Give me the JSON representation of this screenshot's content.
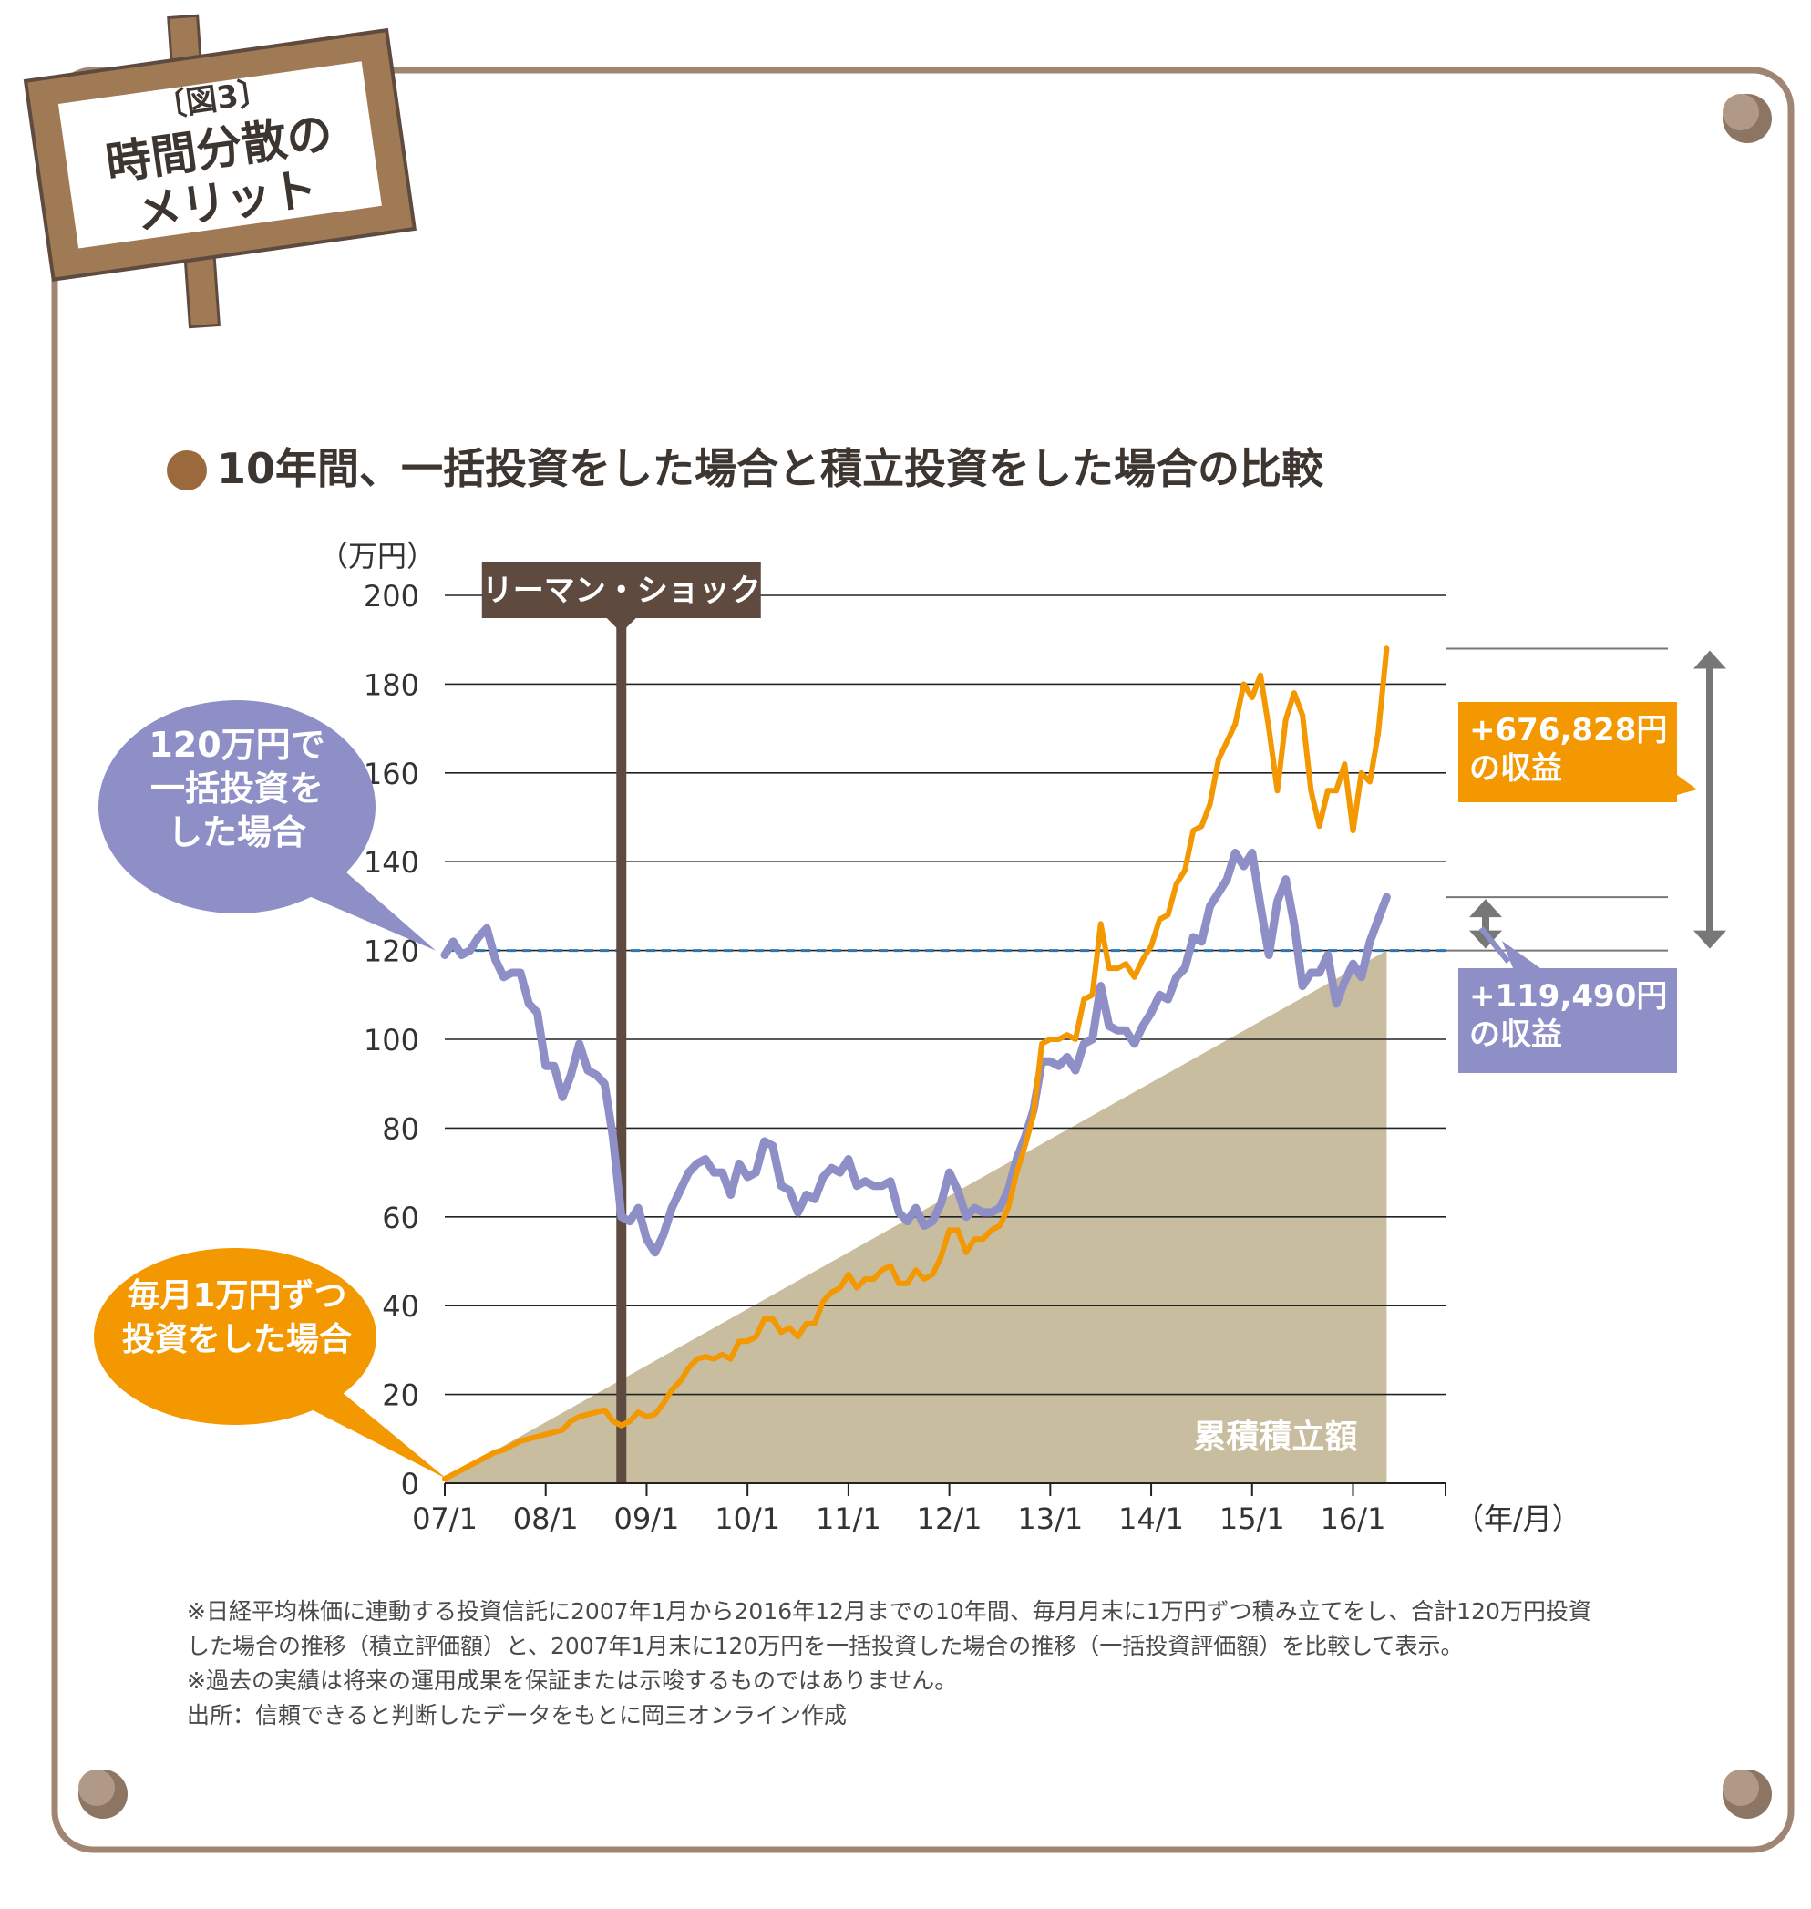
{
  "header": {
    "figure_tag": "〔図3〕",
    "title_line1": "時間分散の",
    "title_line2": "メリット",
    "chart_heading": "10年間、一括投資をした場合と積立投資をした場合の比較"
  },
  "chart_data": {
    "type": "line",
    "title": "",
    "y_unit_label": "（万円）",
    "x_unit_label": "（年/月）",
    "ylim": [
      0,
      200
    ],
    "y_ticks": [
      0,
      20,
      40,
      60,
      80,
      100,
      120,
      140,
      160,
      180,
      200
    ],
    "x_tick_labels": [
      "07/1",
      "08/1",
      "09/1",
      "10/1",
      "11/1",
      "12/1",
      "13/1",
      "14/1",
      "15/1",
      "16/1"
    ],
    "x_tick_months": [
      0,
      12,
      24,
      36,
      48,
      60,
      72,
      84,
      96,
      108
    ],
    "x_range_months": [
      0,
      119
    ],
    "grid": "horizontal",
    "reference_line": {
      "value": 120,
      "style": "dashed",
      "color": "#2e75b6"
    },
    "event": {
      "label": "リーマン・ショック",
      "month": 21
    },
    "series": [
      {
        "name": "120万円で一括投資をした場合",
        "color": "#8e8fc7",
        "points": [
          [
            0,
            119
          ],
          [
            1,
            122
          ],
          [
            2,
            119
          ],
          [
            3,
            120
          ],
          [
            4,
            123
          ],
          [
            5,
            125
          ],
          [
            6,
            118
          ],
          [
            7,
            114
          ],
          [
            8,
            115
          ],
          [
            9,
            115
          ],
          [
            10,
            108
          ],
          [
            11,
            106
          ],
          [
            12,
            94
          ],
          [
            13,
            94
          ],
          [
            14,
            87
          ],
          [
            15,
            92
          ],
          [
            16,
            99
          ],
          [
            17,
            93
          ],
          [
            18,
            92
          ],
          [
            19,
            90
          ],
          [
            20,
            78
          ],
          [
            21,
            60
          ],
          [
            22,
            59
          ],
          [
            23,
            62
          ],
          [
            24,
            55
          ],
          [
            25,
            52
          ],
          [
            26,
            56
          ],
          [
            27,
            62
          ],
          [
            28,
            66
          ],
          [
            29,
            70
          ],
          [
            30,
            72
          ],
          [
            31,
            73
          ],
          [
            32,
            70
          ],
          [
            33,
            70
          ],
          [
            34,
            65
          ],
          [
            35,
            72
          ],
          [
            36,
            69
          ],
          [
            37,
            70
          ],
          [
            38,
            77
          ],
          [
            39,
            76
          ],
          [
            40,
            67
          ],
          [
            41,
            66
          ],
          [
            42,
            61
          ],
          [
            43,
            65
          ],
          [
            44,
            64
          ],
          [
            45,
            69
          ],
          [
            46,
            71
          ],
          [
            47,
            70
          ],
          [
            48,
            73
          ],
          [
            49,
            67
          ],
          [
            50,
            68
          ],
          [
            51,
            67
          ],
          [
            52,
            67
          ],
          [
            53,
            68
          ],
          [
            54,
            61
          ],
          [
            55,
            59
          ],
          [
            56,
            62
          ],
          [
            57,
            58
          ],
          [
            58,
            59
          ],
          [
            59,
            63
          ],
          [
            60,
            70
          ],
          [
            61,
            66
          ],
          [
            62,
            60
          ],
          [
            63,
            62
          ],
          [
            64,
            61
          ],
          [
            65,
            61
          ],
          [
            66,
            62
          ],
          [
            67,
            66
          ],
          [
            68,
            73
          ],
          [
            69,
            78
          ],
          [
            70,
            84
          ],
          [
            71,
            95
          ],
          [
            72,
            95
          ],
          [
            73,
            94
          ],
          [
            74,
            96
          ],
          [
            75,
            93
          ],
          [
            76,
            99
          ],
          [
            77,
            100
          ],
          [
            78,
            112
          ],
          [
            79,
            103
          ],
          [
            80,
            102
          ],
          [
            81,
            102
          ],
          [
            82,
            99
          ],
          [
            83,
            103
          ],
          [
            84,
            106
          ],
          [
            85,
            110
          ],
          [
            86,
            109
          ],
          [
            87,
            114
          ],
          [
            88,
            116
          ],
          [
            89,
            123
          ],
          [
            90,
            122
          ],
          [
            91,
            130
          ],
          [
            92,
            133
          ],
          [
            93,
            136
          ],
          [
            94,
            142
          ],
          [
            95,
            139
          ],
          [
            96,
            142
          ],
          [
            97,
            130
          ],
          [
            98,
            119
          ],
          [
            99,
            131
          ],
          [
            100,
            136
          ],
          [
            101,
            126
          ],
          [
            102,
            112
          ],
          [
            103,
            115
          ],
          [
            104,
            115
          ],
          [
            105,
            119
          ],
          [
            106,
            108
          ],
          [
            107,
            113
          ],
          [
            108,
            117
          ],
          [
            109,
            114
          ],
          [
            110,
            122
          ],
          [
            111,
            127
          ],
          [
            112,
            132
          ]
        ]
      },
      {
        "name": "毎月1万円ずつ投資をした場合",
        "color": "#f39800",
        "points": [
          [
            0,
            1
          ],
          [
            1,
            2
          ],
          [
            2,
            3
          ],
          [
            3,
            4
          ],
          [
            4,
            5
          ],
          [
            5,
            6
          ],
          [
            6,
            7
          ],
          [
            7,
            7.5
          ],
          [
            8,
            8.5
          ],
          [
            9,
            9.5
          ],
          [
            10,
            10
          ],
          [
            11,
            10.5
          ],
          [
            12,
            11
          ],
          [
            13,
            11.5
          ],
          [
            14,
            12
          ],
          [
            15,
            14
          ],
          [
            16,
            15
          ],
          [
            17,
            15.5
          ],
          [
            18,
            16
          ],
          [
            19,
            16.5
          ],
          [
            20,
            14
          ],
          [
            21,
            13
          ],
          [
            22,
            14
          ],
          [
            23,
            16
          ],
          [
            24,
            15
          ],
          [
            25,
            15.5
          ],
          [
            26,
            18
          ],
          [
            27,
            21
          ],
          [
            28,
            23
          ],
          [
            29,
            26
          ],
          [
            30,
            28
          ],
          [
            31,
            28.5
          ],
          [
            32,
            28
          ],
          [
            33,
            29
          ],
          [
            34,
            28
          ],
          [
            35,
            32
          ],
          [
            36,
            32
          ],
          [
            37,
            33
          ],
          [
            38,
            37
          ],
          [
            39,
            37
          ],
          [
            40,
            34
          ],
          [
            41,
            35
          ],
          [
            42,
            33
          ],
          [
            43,
            36
          ],
          [
            44,
            36
          ],
          [
            45,
            41
          ],
          [
            46,
            43
          ],
          [
            47,
            44
          ],
          [
            48,
            47
          ],
          [
            49,
            44
          ],
          [
            50,
            46
          ],
          [
            51,
            46
          ],
          [
            52,
            48
          ],
          [
            53,
            49
          ],
          [
            54,
            45
          ],
          [
            55,
            45
          ],
          [
            56,
            48
          ],
          [
            57,
            46
          ],
          [
            58,
            47
          ],
          [
            59,
            51
          ],
          [
            60,
            57
          ],
          [
            61,
            57
          ],
          [
            62,
            52
          ],
          [
            63,
            55
          ],
          [
            64,
            55
          ],
          [
            65,
            57
          ],
          [
            66,
            58
          ],
          [
            67,
            62
          ],
          [
            68,
            70
          ],
          [
            69,
            76
          ],
          [
            70,
            83
          ],
          [
            71,
            99
          ],
          [
            72,
            100
          ],
          [
            73,
            100
          ],
          [
            74,
            101
          ],
          [
            75,
            100
          ],
          [
            76,
            109
          ],
          [
            77,
            110
          ],
          [
            78,
            126
          ],
          [
            79,
            116
          ],
          [
            80,
            116
          ],
          [
            81,
            117
          ],
          [
            82,
            114
          ],
          [
            83,
            118
          ],
          [
            84,
            121
          ],
          [
            85,
            127
          ],
          [
            86,
            128
          ],
          [
            87,
            135
          ],
          [
            88,
            138
          ],
          [
            89,
            147
          ],
          [
            90,
            148
          ],
          [
            91,
            153
          ],
          [
            92,
            163
          ],
          [
            93,
            167
          ],
          [
            94,
            171
          ],
          [
            95,
            180
          ],
          [
            96,
            177
          ],
          [
            97,
            182
          ],
          [
            98,
            170
          ],
          [
            99,
            156
          ],
          [
            100,
            172
          ],
          [
            101,
            178
          ],
          [
            102,
            173
          ],
          [
            103,
            156
          ],
          [
            104,
            148
          ],
          [
            105,
            156
          ],
          [
            106,
            156
          ],
          [
            107,
            162
          ],
          [
            108,
            147
          ],
          [
            109,
            160
          ],
          [
            110,
            158
          ],
          [
            111,
            169
          ],
          [
            112,
            188
          ]
        ]
      },
      {
        "name": "累積積立額",
        "type": "area",
        "color": "#c9bd9f",
        "points": [
          [
            0,
            1
          ],
          [
            112,
            120
          ]
        ]
      }
    ]
  },
  "callouts": {
    "lump_sum": [
      "120万円で",
      "一括投資を",
      "した場合"
    ],
    "monthly": [
      "毎月1万円ずつ",
      "投資をした場合"
    ]
  },
  "annotations": {
    "lump_gain": {
      "value": "+676,828円",
      "label": "の収益"
    },
    "monthly_gain": {
      "value": "+119,490円",
      "label": "の収益"
    }
  },
  "area_label": "累積積立額",
  "notes": {
    "line1": "※日経平均株価に連動する投資信託に2007年1月から2016年12月までの10年間、毎月月末に1万円ずつ積み立てをし、合計120万円投資",
    "line2": "した場合の推移（積立評価額）と、2007年1月末に120万円を一括投資した場合の推移（一括投資評価額）を比較して表示。",
    "line3": "※過去の実績は将来の運用成果を保証または示唆するものではありません。",
    "source": "出所：信頼できると判断したデータをもとに岡三オンライン作成"
  },
  "colors": {
    "frame": "#a08672",
    "board": "#a07a55",
    "event": "#5e4a3f",
    "lump": "#8e8fc7",
    "monthly": "#f39800",
    "area": "#c9bd9f",
    "pin": "#8d7563",
    "bullet": "#9a6a3c"
  }
}
